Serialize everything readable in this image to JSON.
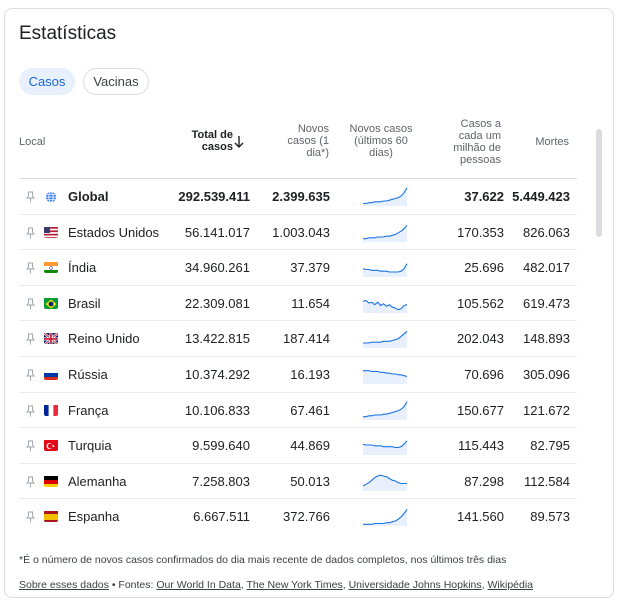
{
  "title": "Estatísticas",
  "tabs": [
    {
      "label": "Casos",
      "selected": true
    },
    {
      "label": "Vacinas",
      "selected": false
    }
  ],
  "columns": {
    "local": "Local",
    "total_line1": "Total de",
    "total_line2": "casos",
    "novos": [
      "Novos",
      "casos (1",
      "dia*)"
    ],
    "novos60": [
      "Novos casos",
      "(últimos 60",
      "dias)"
    ],
    "milhao": [
      "Casos a",
      "cada um",
      "milhão de",
      "pessoas"
    ],
    "mortes": "Mortes"
  },
  "rows": [
    {
      "name": "Global",
      "flag": "globe-icon",
      "total": "292.539.411",
      "new": "2.399.635",
      "per_million": "37.622",
      "deaths": "5.449.423",
      "trend": [
        3,
        3,
        4,
        4,
        5,
        5,
        5,
        6,
        6,
        7,
        8,
        9,
        10,
        12,
        16,
        22
      ]
    },
    {
      "name": "Estados Unidos",
      "flag": "us-flag-icon",
      "total": "56.141.017",
      "new": "1.003.043",
      "per_million": "170.353",
      "deaths": "826.063",
      "trend": [
        4,
        4,
        5,
        5,
        5,
        6,
        6,
        6,
        7,
        7,
        8,
        9,
        11,
        13,
        16,
        20
      ]
    },
    {
      "name": "Índia",
      "flag": "india-flag-icon",
      "total": "34.960.261",
      "new": "37.379",
      "per_million": "25.696",
      "deaths": "482.017",
      "trend": [
        10,
        9,
        9,
        8,
        8,
        8,
        7,
        7,
        7,
        6,
        6,
        6,
        6,
        7,
        10,
        16
      ]
    },
    {
      "name": "Brasil",
      "flag": "brazil-flag-icon",
      "total": "22.309.081",
      "new": "11.654",
      "per_million": "105.562",
      "deaths": "619.473",
      "trend": [
        14,
        15,
        12,
        13,
        10,
        13,
        9,
        11,
        8,
        10,
        7,
        6,
        4,
        5,
        9,
        10
      ]
    },
    {
      "name": "Reino Unido",
      "flag": "uk-flag-icon",
      "total": "13.422.815",
      "new": "187.414",
      "per_million": "202.043",
      "deaths": "148.893",
      "trend": [
        6,
        6,
        6,
        7,
        7,
        7,
        7,
        8,
        8,
        8,
        9,
        10,
        11,
        14,
        17,
        20
      ]
    },
    {
      "name": "Rússia",
      "flag": "russia-flag-icon",
      "total": "10.374.292",
      "new": "16.193",
      "per_million": "70.696",
      "deaths": "305.096",
      "trend": [
        16,
        16,
        16,
        15,
        15,
        15,
        14,
        14,
        13,
        13,
        12,
        12,
        11,
        11,
        10,
        9
      ]
    },
    {
      "name": "França",
      "flag": "france-flag-icon",
      "total": "10.106.833",
      "new": "67.461",
      "per_million": "150.677",
      "deaths": "121.672",
      "trend": [
        4,
        4,
        5,
        5,
        6,
        6,
        6,
        7,
        7,
        8,
        9,
        10,
        11,
        13,
        16,
        22
      ]
    },
    {
      "name": "Turquia",
      "flag": "turkey-flag-icon",
      "total": "9.599.640",
      "new": "44.869",
      "per_million": "115.443",
      "deaths": "82.795",
      "trend": [
        13,
        12,
        12,
        12,
        11,
        11,
        11,
        10,
        10,
        10,
        10,
        9,
        9,
        10,
        13,
        17
      ]
    },
    {
      "name": "Alemanha",
      "flag": "germany-flag-icon",
      "total": "7.258.803",
      "new": "50.013",
      "per_million": "87.298",
      "deaths": "112.584",
      "trend": [
        6,
        8,
        10,
        13,
        16,
        18,
        19,
        18,
        17,
        15,
        13,
        12,
        10,
        9,
        9,
        9
      ]
    },
    {
      "name": "Espanha",
      "flag": "spain-flag-icon",
      "total": "6.667.511",
      "new": "372.766",
      "per_million": "141.560",
      "deaths": "89.573",
      "trend": [
        2,
        2,
        2,
        2,
        3,
        3,
        3,
        3,
        4,
        4,
        5,
        6,
        8,
        11,
        15,
        20
      ]
    }
  ],
  "footnote": "*É o número de novos casos confirmados do dia mais recente de dados completos, nos últimos três dias",
  "sources": {
    "about": "Sobre esses dados",
    "separator": " • Fontes: ",
    "links": [
      "Our World In Data",
      "The New York Times",
      "Universidade Johns Hopkins",
      "Wikipédia"
    ]
  },
  "colors": {
    "accent": "#1a73e8",
    "spark_fill": "#e8f0fe",
    "chip_bg": "#e8f0fe"
  }
}
